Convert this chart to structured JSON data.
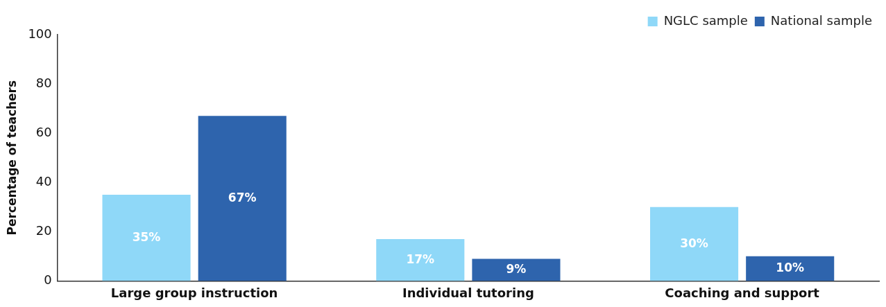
{
  "chart_data": {
    "type": "bar",
    "ylabel": "Percentage of teachers",
    "categories": [
      "Large group instruction",
      "Individual tutoring",
      "Coaching and support"
    ],
    "series": [
      {
        "name": "NGLC sample",
        "color": "#8fd8f8",
        "values": [
          35,
          17,
          30
        ],
        "value_labels": [
          "35%",
          "17%",
          "30%"
        ]
      },
      {
        "name": "National sample",
        "color": "#2e64ad",
        "values": [
          67,
          9,
          10
        ],
        "value_labels": [
          "67%",
          "9%",
          "10%"
        ]
      }
    ],
    "ylim": [
      0,
      100
    ],
    "yticks": [
      0,
      20,
      40,
      60,
      80,
      100
    ],
    "grid": false,
    "legend": "top right"
  }
}
